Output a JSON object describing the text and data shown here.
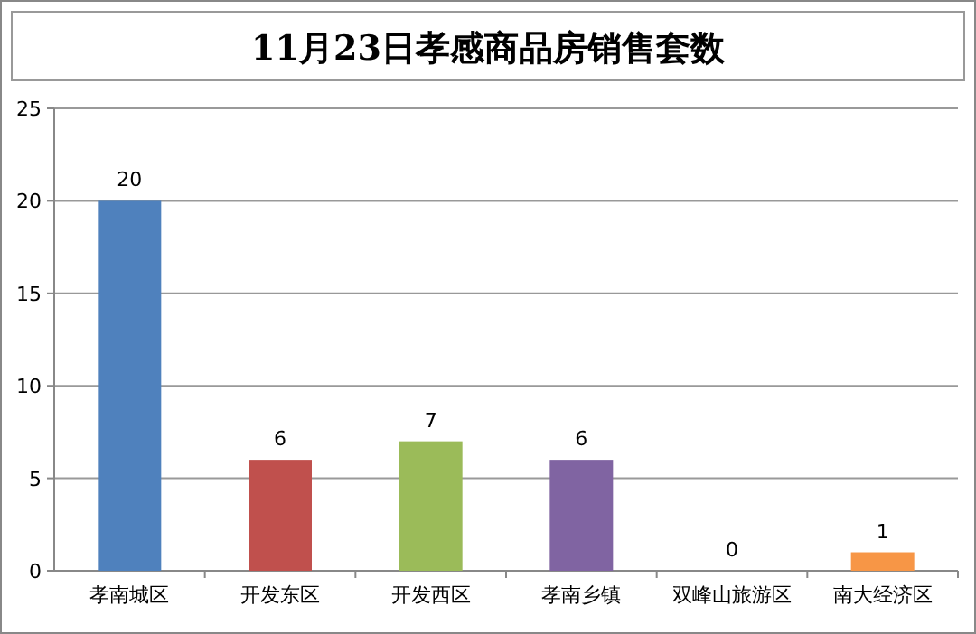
{
  "chart_data": {
    "type": "bar",
    "title": "11月23日孝感商品房销售套数",
    "categories": [
      "孝南城区",
      "开发东区",
      "开发西区",
      "孝南乡镇",
      "双峰山旅游区",
      "南大经济区"
    ],
    "values": [
      20,
      6,
      7,
      6,
      0,
      1
    ],
    "colors": [
      "#4f81bd",
      "#c0504d",
      "#9bbb59",
      "#8064a2",
      "#4bacc6",
      "#f79646"
    ],
    "ylim": [
      0,
      25
    ],
    "yticks": [
      0,
      5,
      10,
      15,
      20,
      25
    ],
    "grid": "y",
    "data_labels": true
  }
}
